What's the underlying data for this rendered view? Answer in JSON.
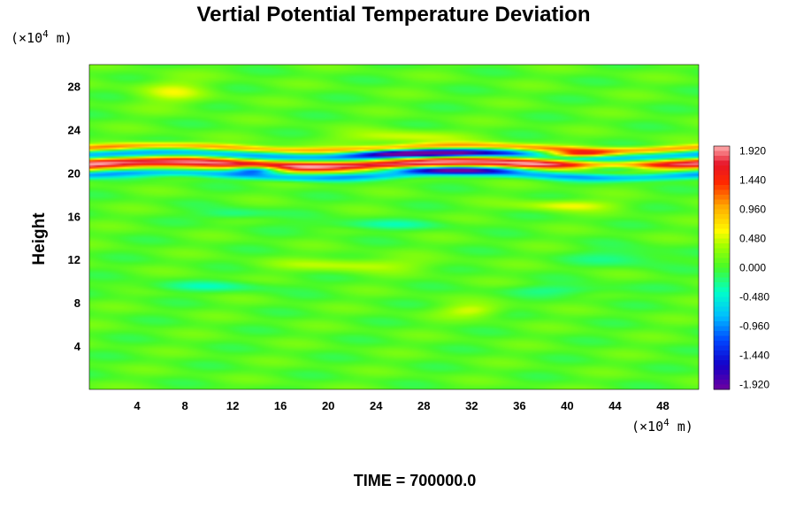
{
  "chart_data": {
    "type": "heatmap",
    "title": "Vertial Potential Temperature Deviation",
    "ylabel": "Height",
    "xlabel": "",
    "y_unit_prefix": "(×10",
    "y_unit_exp": "4",
    "y_unit_suffix": " m)",
    "x_unit_prefix": "(×10",
    "x_unit_exp": "4",
    "x_unit_suffix": " m)",
    "xlim": [
      0,
      51
    ],
    "ylim": [
      0,
      30
    ],
    "x_ticks": [
      "4",
      "8",
      "12",
      "16",
      "20",
      "24",
      "28",
      "32",
      "36",
      "40",
      "44",
      "48"
    ],
    "x_tick_values": [
      4,
      8,
      12,
      16,
      20,
      24,
      28,
      32,
      36,
      40,
      44,
      48
    ],
    "y_ticks": [
      "4",
      "8",
      "12",
      "16",
      "20",
      "24",
      "28"
    ],
    "y_tick_values": [
      4,
      8,
      12,
      16,
      20,
      24,
      28
    ],
    "colorbar": {
      "ticks": [
        "1.920",
        "1.440",
        "0.960",
        "0.480",
        "0.000",
        "-0.480",
        "-0.960",
        "-1.440",
        "-1.920"
      ],
      "tick_values": [
        1.92,
        1.44,
        0.96,
        0.48,
        0.0,
        -0.48,
        -0.96,
        -1.44,
        -1.92
      ],
      "range": [
        -2.0,
        2.0
      ]
    },
    "background_value": 0.05,
    "features": [
      {
        "kind": "band",
        "y_center": 20.8,
        "y_halfwidth": 0.5,
        "value": 1.9
      },
      {
        "kind": "band",
        "y_center": 21.6,
        "y_halfwidth": 0.4,
        "value": -1.0
      },
      {
        "kind": "band",
        "y_center": 19.8,
        "y_halfwidth": 0.35,
        "value": -0.9
      },
      {
        "kind": "band",
        "y_center": 22.3,
        "y_halfwidth": 0.3,
        "value": 1.0
      },
      {
        "kind": "blob",
        "x": 28,
        "y": 21.8,
        "rx": 5.5,
        "ry": 0.35,
        "value": -1.9
      },
      {
        "kind": "blob",
        "x": 30,
        "y": 20.3,
        "rx": 6,
        "ry": 0.3,
        "value": -1.7
      },
      {
        "kind": "blob",
        "x": 44,
        "y": 20.4,
        "rx": 4,
        "ry": 0.35,
        "value": -1.8
      },
      {
        "kind": "blob",
        "x": 14,
        "y": 20.3,
        "rx": 2,
        "ry": 0.35,
        "value": -1.6
      },
      {
        "kind": "blob",
        "x": 41,
        "y": 21.7,
        "rx": 3,
        "ry": 0.3,
        "value": 1.7
      },
      {
        "kind": "blob",
        "x": 26,
        "y": 23.3,
        "rx": 5,
        "ry": 0.6,
        "value": 0.45
      },
      {
        "kind": "blob",
        "x": 7,
        "y": 27.5,
        "rx": 3,
        "ry": 1.2,
        "value": 0.4
      },
      {
        "kind": "blob",
        "x": 40,
        "y": 17.0,
        "rx": 4,
        "ry": 0.5,
        "value": 0.5
      },
      {
        "kind": "blob",
        "x": 22,
        "y": 11.5,
        "rx": 6,
        "ry": 0.6,
        "value": 0.4
      },
      {
        "kind": "blob",
        "x": 32,
        "y": 7.3,
        "rx": 2.5,
        "ry": 0.6,
        "value": 0.45
      },
      {
        "kind": "blob",
        "x": 12,
        "y": 16.2,
        "rx": 3,
        "ry": 0.5,
        "value": -0.35
      },
      {
        "kind": "blob",
        "x": 24,
        "y": 15.2,
        "rx": 6,
        "ry": 0.5,
        "value": -0.3
      },
      {
        "kind": "blob",
        "x": 45,
        "y": 12.2,
        "rx": 4,
        "ry": 0.8,
        "value": -0.3
      },
      {
        "kind": "blob",
        "x": 10,
        "y": 9.5,
        "rx": 6,
        "ry": 0.5,
        "value": -0.3
      },
      {
        "kind": "blob",
        "x": 40,
        "y": 9.2,
        "rx": 5,
        "ry": 0.5,
        "value": -0.28
      }
    ]
  },
  "footer": {
    "time_label": "TIME = 700000.0"
  }
}
